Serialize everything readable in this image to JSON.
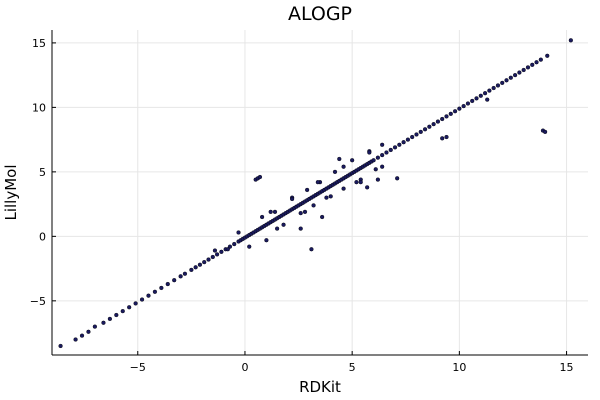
{
  "chart_data": {
    "type": "scatter",
    "title": "ALOGP",
    "xlabel": "RDKit",
    "ylabel": "LillyMol",
    "xlim": [
      -9.0,
      16.0
    ],
    "ylim": [
      -9.2,
      16.0
    ],
    "xticks": [
      -5,
      0,
      5,
      10,
      15
    ],
    "yticks": [
      -5,
      0,
      5,
      10,
      15
    ],
    "tick_labels_x": [
      "−5",
      "0",
      "5",
      "10",
      "15"
    ],
    "tick_labels_y": [
      "−5",
      "0",
      "5",
      "10",
      "15"
    ],
    "grid": true,
    "legend": "none",
    "marker_color": "#1a1a5e",
    "marker_edge": "#000000",
    "series": [
      {
        "x": [
          -8.6,
          -7.9,
          -7.6,
          -7.3,
          -7.0,
          -6.6,
          -6.3,
          -6.0,
          -5.7,
          -5.4,
          -5.1,
          -4.8,
          -4.5,
          -4.2,
          -3.9,
          -3.6,
          -3.3,
          -3.0,
          -2.8,
          -2.5,
          -2.3,
          -2.1,
          -1.9,
          -1.7,
          -1.5,
          -1.3,
          -1.1,
          -0.9,
          -0.7,
          -0.5,
          -0.3,
          -0.2,
          -0.1,
          0.0,
          0.1,
          0.2,
          0.3,
          0.4,
          0.5,
          0.6,
          0.7,
          0.8,
          0.9,
          1.0,
          1.1,
          1.2,
          1.3,
          1.4,
          1.5,
          1.6,
          1.7,
          1.8,
          1.9,
          2.0,
          2.1,
          2.2,
          2.3,
          2.4,
          2.5,
          2.6,
          2.7,
          2.8,
          2.9,
          3.0,
          3.1,
          3.2,
          3.3,
          3.4,
          3.5,
          3.6,
          3.7,
          3.8,
          3.9,
          4.0,
          4.1,
          4.2,
          4.3,
          4.4,
          4.5,
          4.6,
          4.7,
          4.8,
          4.9,
          5.0,
          5.1,
          5.2,
          5.3,
          5.4,
          5.5,
          5.6,
          5.7,
          5.8,
          5.9,
          6.0,
          6.2,
          6.4,
          6.6,
          6.8,
          7.0,
          7.2,
          7.4,
          7.6,
          7.8,
          8.0,
          8.2,
          8.4,
          8.6,
          8.8,
          9.0,
          9.2,
          9.4,
          9.6,
          9.8,
          10.0,
          10.2,
          10.4,
          10.6,
          10.8,
          11.0,
          11.2,
          11.4,
          11.6,
          11.8,
          12.0,
          12.2,
          12.4,
          12.6,
          12.8,
          13.0,
          13.2,
          13.4,
          13.6,
          13.8,
          14.1,
          15.2,
          -1.4,
          -0.8,
          0.5,
          0.6,
          0.7,
          1.0,
          1.4,
          1.8,
          2.2,
          2.6,
          2.9,
          3.2,
          3.5,
          3.8,
          4.2,
          4.6,
          5.0,
          5.4,
          5.8,
          6.1,
          6.4,
          0.2,
          0.8,
          1.5,
          2.2,
          2.8,
          3.4,
          4.0,
          4.6,
          5.2,
          5.8,
          6.4,
          2.6,
          3.1,
          -0.3,
          1.2,
          5.4,
          6.2,
          7.1,
          9.2,
          9.4,
          11.3,
          13.9,
          14.0,
          3.6,
          4.4,
          5.7
        ],
        "y": [
          -8.5,
          -8.0,
          -7.7,
          -7.4,
          -7.0,
          -6.7,
          -6.4,
          -6.1,
          -5.8,
          -5.5,
          -5.2,
          -4.9,
          -4.6,
          -4.3,
          -4.0,
          -3.7,
          -3.4,
          -3.1,
          -2.9,
          -2.6,
          -2.4,
          -2.2,
          -2.0,
          -1.8,
          -1.6,
          -1.4,
          -1.2,
          -1.0,
          -0.8,
          -0.6,
          -0.4,
          -0.3,
          -0.2,
          -0.1,
          0.0,
          0.1,
          0.2,
          0.3,
          0.4,
          0.5,
          0.6,
          0.7,
          0.8,
          0.9,
          1.0,
          1.1,
          1.2,
          1.3,
          1.4,
          1.5,
          1.6,
          1.7,
          1.8,
          1.9,
          2.0,
          2.1,
          2.2,
          2.3,
          2.4,
          2.5,
          2.6,
          2.7,
          2.8,
          2.9,
          3.0,
          3.1,
          3.2,
          3.3,
          3.4,
          3.5,
          3.6,
          3.7,
          3.8,
          3.9,
          4.0,
          4.1,
          4.2,
          4.3,
          4.4,
          4.5,
          4.6,
          4.7,
          4.8,
          4.9,
          5.0,
          5.1,
          5.2,
          5.3,
          5.4,
          5.5,
          5.6,
          5.7,
          5.8,
          5.9,
          6.1,
          6.3,
          6.5,
          6.7,
          6.9,
          7.1,
          7.3,
          7.5,
          7.7,
          7.9,
          8.1,
          8.3,
          8.5,
          8.7,
          8.9,
          9.1,
          9.3,
          9.5,
          9.7,
          9.9,
          10.1,
          10.3,
          10.5,
          10.7,
          10.9,
          11.1,
          11.3,
          11.5,
          11.7,
          11.9,
          12.1,
          12.3,
          12.5,
          12.7,
          12.9,
          13.1,
          13.3,
          13.5,
          13.7,
          14.0,
          15.2,
          -1.1,
          -1.0,
          4.4,
          4.5,
          4.6,
          -0.3,
          1.9,
          0.9,
          3.0,
          1.8,
          3.6,
          2.4,
          4.2,
          3.0,
          5.0,
          3.7,
          5.9,
          4.4,
          6.6,
          5.2,
          7.1,
          -0.8,
          1.5,
          0.6,
          2.9,
          1.9,
          4.2,
          3.1,
          5.4,
          4.2,
          6.5,
          5.4,
          0.6,
          -1.0,
          0.3,
          1.9,
          4.2,
          4.4,
          4.5,
          7.6,
          7.7,
          10.6,
          8.2,
          8.1,
          1.5,
          6.0,
          3.8
        ]
      }
    ]
  }
}
